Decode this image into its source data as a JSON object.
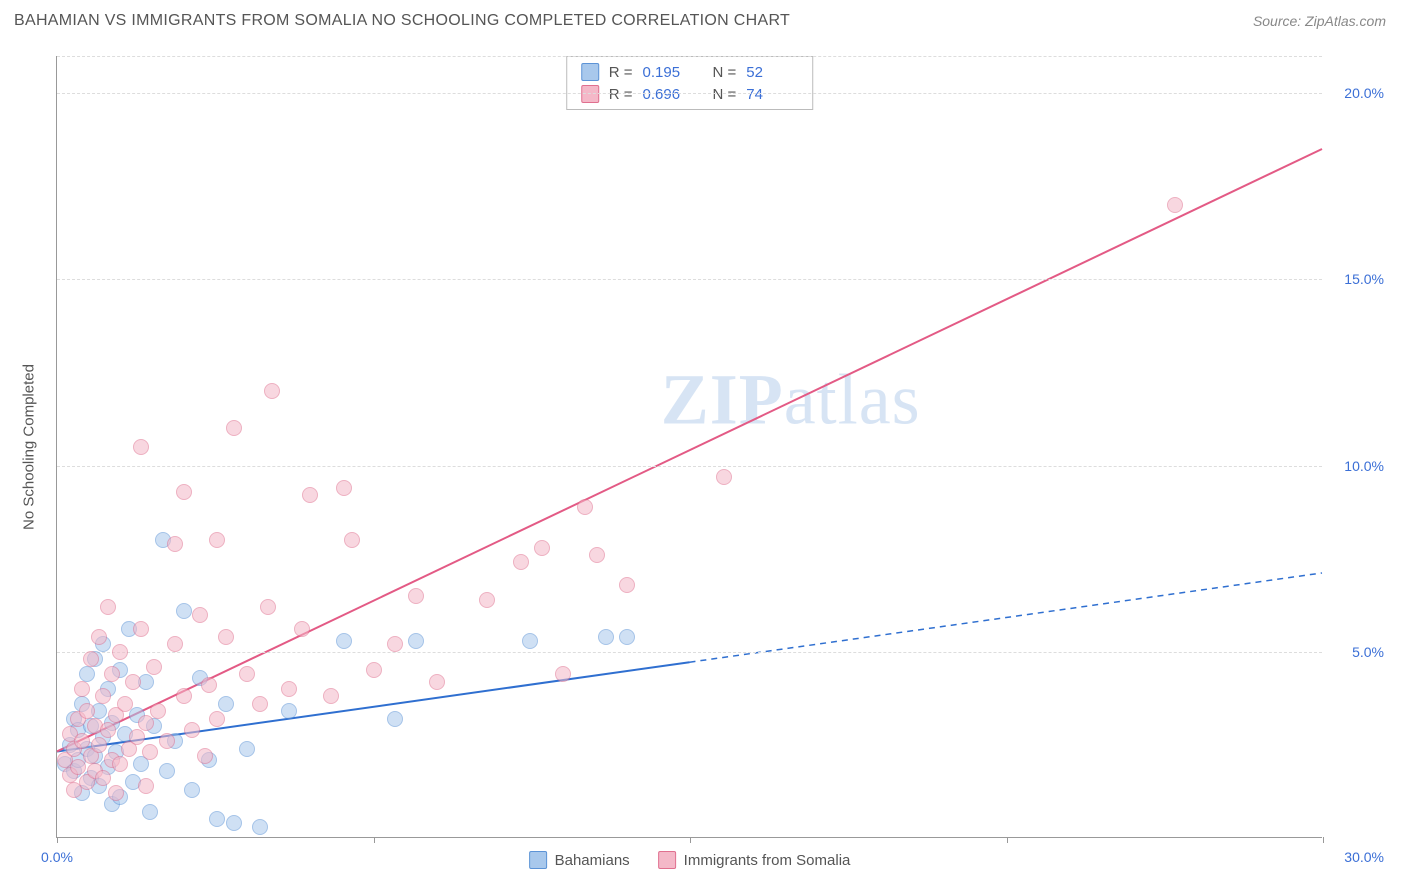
{
  "header": {
    "title": "BAHAMIAN VS IMMIGRANTS FROM SOMALIA NO SCHOOLING COMPLETED CORRELATION CHART",
    "source": "Source: ZipAtlas.com"
  },
  "watermark": {
    "zip": "ZIP",
    "atlas": "atlas"
  },
  "chart": {
    "type": "scatter",
    "ylabel": "No Schooling Completed",
    "xlim": [
      0,
      30
    ],
    "ylim": [
      0,
      21
    ],
    "x_ticks": [
      0,
      7.5,
      15,
      22.5,
      30
    ],
    "x_tick_labels": [
      "0.0%",
      "",
      "",
      "",
      "30.0%"
    ],
    "y_gridlines": [
      5,
      10,
      15,
      20
    ],
    "y_tick_labels": [
      "5.0%",
      "10.0%",
      "15.0%",
      "20.0%"
    ],
    "background_color": "#ffffff",
    "grid_color": "#dddddd",
    "axis_color": "#999999",
    "tick_label_color": "#3b6fd6",
    "marker_radius": 8,
    "marker_border_width": 1,
    "series": [
      {
        "name": "Bahamians",
        "color_fill": "#a8c8ec",
        "color_border": "#5c93d6",
        "fill_opacity": 0.55,
        "r": 0.195,
        "n": 52,
        "trend": {
          "x1": 0,
          "y1": 2.3,
          "x2": 15,
          "y2": 4.7,
          "color": "#2f6fd0",
          "width": 2
        },
        "trend_ext": {
          "x1": 15,
          "y1": 4.7,
          "x2": 30,
          "y2": 7.1,
          "color": "#2f6fd0",
          "width": 1.5,
          "dash": "6,5"
        },
        "points": [
          [
            0.2,
            2.0
          ],
          [
            0.3,
            2.5
          ],
          [
            0.4,
            1.8
          ],
          [
            0.4,
            3.2
          ],
          [
            0.5,
            2.1
          ],
          [
            0.5,
            2.9
          ],
          [
            0.6,
            1.2
          ],
          [
            0.6,
            3.6
          ],
          [
            0.7,
            2.4
          ],
          [
            0.7,
            4.4
          ],
          [
            0.8,
            1.6
          ],
          [
            0.8,
            3.0
          ],
          [
            0.9,
            2.2
          ],
          [
            0.9,
            4.8
          ],
          [
            1.0,
            1.4
          ],
          [
            1.0,
            3.4
          ],
          [
            1.1,
            2.7
          ],
          [
            1.1,
            5.2
          ],
          [
            1.2,
            1.9
          ],
          [
            1.2,
            4.0
          ],
          [
            1.3,
            0.9
          ],
          [
            1.3,
            3.1
          ],
          [
            1.4,
            2.3
          ],
          [
            1.5,
            4.5
          ],
          [
            1.5,
            1.1
          ],
          [
            1.6,
            2.8
          ],
          [
            1.7,
            5.6
          ],
          [
            1.8,
            1.5
          ],
          [
            1.9,
            3.3
          ],
          [
            2.0,
            2.0
          ],
          [
            2.1,
            4.2
          ],
          [
            2.2,
            0.7
          ],
          [
            2.3,
            3.0
          ],
          [
            2.5,
            8.0
          ],
          [
            2.6,
            1.8
          ],
          [
            2.8,
            2.6
          ],
          [
            3.0,
            6.1
          ],
          [
            3.2,
            1.3
          ],
          [
            3.4,
            4.3
          ],
          [
            3.6,
            2.1
          ],
          [
            3.8,
            0.5
          ],
          [
            4.0,
            3.6
          ],
          [
            4.2,
            0.4
          ],
          [
            4.5,
            2.4
          ],
          [
            4.8,
            0.3
          ],
          [
            5.5,
            3.4
          ],
          [
            6.8,
            5.3
          ],
          [
            8.0,
            3.2
          ],
          [
            8.5,
            5.3
          ],
          [
            11.2,
            5.3
          ],
          [
            13.0,
            5.4
          ],
          [
            13.5,
            5.4
          ]
        ]
      },
      {
        "name": "Immigrants from Somalia",
        "color_fill": "#f4b8c8",
        "color_border": "#e0708f",
        "fill_opacity": 0.55,
        "r": 0.696,
        "n": 74,
        "trend": {
          "x1": 0,
          "y1": 2.3,
          "x2": 30,
          "y2": 18.5,
          "color": "#e35a85",
          "width": 2
        },
        "points": [
          [
            0.2,
            2.1
          ],
          [
            0.3,
            1.7
          ],
          [
            0.3,
            2.8
          ],
          [
            0.4,
            1.3
          ],
          [
            0.4,
            2.4
          ],
          [
            0.5,
            3.2
          ],
          [
            0.5,
            1.9
          ],
          [
            0.6,
            2.6
          ],
          [
            0.6,
            4.0
          ],
          [
            0.7,
            1.5
          ],
          [
            0.7,
            3.4
          ],
          [
            0.8,
            2.2
          ],
          [
            0.8,
            4.8
          ],
          [
            0.9,
            1.8
          ],
          [
            0.9,
            3.0
          ],
          [
            1.0,
            2.5
          ],
          [
            1.0,
            5.4
          ],
          [
            1.1,
            1.6
          ],
          [
            1.1,
            3.8
          ],
          [
            1.2,
            2.9
          ],
          [
            1.2,
            6.2
          ],
          [
            1.3,
            2.1
          ],
          [
            1.3,
            4.4
          ],
          [
            1.4,
            3.3
          ],
          [
            1.5,
            2.0
          ],
          [
            1.5,
            5.0
          ],
          [
            1.6,
            3.6
          ],
          [
            1.7,
            2.4
          ],
          [
            1.8,
            4.2
          ],
          [
            1.9,
            2.7
          ],
          [
            2.0,
            5.6
          ],
          [
            2.1,
            3.1
          ],
          [
            2.2,
            2.3
          ],
          [
            2.3,
            4.6
          ],
          [
            2.4,
            3.4
          ],
          [
            2.6,
            2.6
          ],
          [
            2.8,
            5.2
          ],
          [
            3.0,
            3.8
          ],
          [
            3.2,
            2.9
          ],
          [
            3.4,
            6.0
          ],
          [
            3.6,
            4.1
          ],
          [
            3.8,
            3.2
          ],
          [
            4.0,
            5.4
          ],
          [
            2.0,
            10.5
          ],
          [
            2.8,
            7.9
          ],
          [
            3.0,
            9.3
          ],
          [
            3.8,
            8.0
          ],
          [
            4.2,
            11.0
          ],
          [
            4.5,
            4.4
          ],
          [
            4.8,
            3.6
          ],
          [
            5.0,
            6.2
          ],
          [
            5.1,
            12.0
          ],
          [
            5.5,
            4.0
          ],
          [
            5.8,
            5.6
          ],
          [
            6.0,
            9.2
          ],
          [
            6.5,
            3.8
          ],
          [
            6.8,
            9.4
          ],
          [
            7.0,
            8.0
          ],
          [
            7.5,
            4.5
          ],
          [
            8.0,
            5.2
          ],
          [
            8.5,
            6.5
          ],
          [
            9.0,
            4.2
          ],
          [
            10.2,
            6.4
          ],
          [
            11.0,
            7.4
          ],
          [
            11.5,
            7.8
          ],
          [
            12.0,
            4.4
          ],
          [
            12.5,
            8.9
          ],
          [
            12.8,
            7.6
          ],
          [
            13.5,
            6.8
          ],
          [
            15.8,
            9.7
          ],
          [
            26.5,
            17.0
          ],
          [
            1.4,
            1.2
          ],
          [
            2.1,
            1.4
          ],
          [
            3.5,
            2.2
          ]
        ]
      }
    ],
    "stat_box": {
      "border_color": "#bbbbbb",
      "rows": [
        {
          "swatch_fill": "#a8c8ec",
          "swatch_border": "#5c93d6",
          "r_label": "R =",
          "r_val": "0.195",
          "n_label": "N =",
          "n_val": "52"
        },
        {
          "swatch_fill": "#f4b8c8",
          "swatch_border": "#e0708f",
          "r_label": "R =",
          "r_val": "0.696",
          "n_label": "N =",
          "n_val": "74"
        }
      ]
    },
    "legend": [
      {
        "swatch_fill": "#a8c8ec",
        "swatch_border": "#5c93d6",
        "label": "Bahamians"
      },
      {
        "swatch_fill": "#f4b8c8",
        "swatch_border": "#e0708f",
        "label": "Immigrants from Somalia"
      }
    ]
  }
}
